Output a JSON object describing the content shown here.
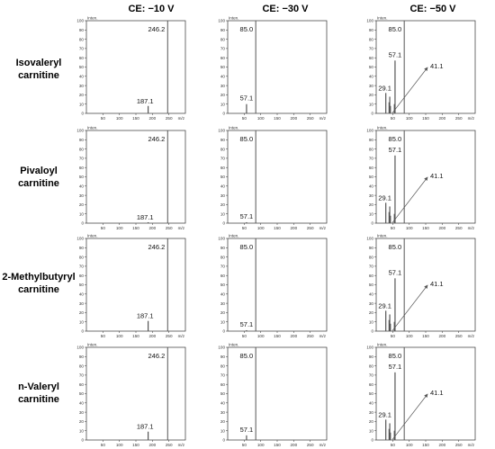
{
  "columns": [
    "CE: −10 V",
    "CE: −30 V",
    "CE: −50 V"
  ],
  "rows": [
    {
      "line1": "Isovaleryl",
      "line2": "carnitine"
    },
    {
      "line1": "Pivaloyl",
      "line2": "carnitine"
    },
    {
      "line1": "2-Methylbutyryl",
      "line2": "carnitine"
    },
    {
      "line1": "n-Valeryl",
      "line2": "carnitine"
    }
  ],
  "axis_text": {
    "intensity_unit": "Inten.",
    "mz_unit": "m/z"
  },
  "chart_data": [
    {
      "type": "bar",
      "compound": "Isovaleryl carnitine",
      "collision_energy": "CE: −10 V",
      "x_ticks": [
        50,
        100,
        150,
        200,
        250
      ],
      "xlim": [
        0,
        300
      ],
      "y_ticks": [
        0,
        10,
        20,
        30,
        40,
        50,
        60,
        70,
        80,
        90,
        100
      ],
      "ylim": [
        0,
        100
      ],
      "peaks": [
        {
          "mz": 187.1,
          "intensity": 8
        },
        {
          "mz": 246.2,
          "intensity": 100
        }
      ],
      "labels": [
        {
          "text": "246.2",
          "mz": 246.2
        },
        {
          "text": "187.1",
          "mz": 187.1
        }
      ]
    },
    {
      "type": "bar",
      "compound": "Isovaleryl carnitine",
      "collision_energy": "CE: −30 V",
      "x_ticks": [
        50,
        100,
        150,
        200,
        250
      ],
      "xlim": [
        0,
        300
      ],
      "y_ticks": [
        0,
        10,
        20,
        30,
        40,
        50,
        60,
        70,
        80,
        90,
        100
      ],
      "ylim": [
        0,
        100
      ],
      "peaks": [
        {
          "mz": 57.1,
          "intensity": 10
        },
        {
          "mz": 85.0,
          "intensity": 100
        }
      ],
      "labels": [
        {
          "text": "85.0",
          "mz": 85.0
        },
        {
          "text": "57.1",
          "mz": 57.1
        }
      ]
    },
    {
      "type": "bar",
      "compound": "Isovaleryl carnitine",
      "collision_energy": "CE: −50 V",
      "x_ticks": [
        50,
        100,
        150,
        200,
        250
      ],
      "xlim": [
        0,
        300
      ],
      "y_ticks": [
        0,
        10,
        20,
        30,
        40,
        50,
        60,
        70,
        80,
        90,
        100
      ],
      "ylim": [
        0,
        100
      ],
      "peaks": [
        {
          "mz": 29.1,
          "intensity": 22
        },
        {
          "mz": 39.1,
          "intensity": 12
        },
        {
          "mz": 41.1,
          "intensity": 18
        },
        {
          "mz": 43.1,
          "intensity": 8
        },
        {
          "mz": 55.1,
          "intensity": 10
        },
        {
          "mz": 57.1,
          "intensity": 57
        },
        {
          "mz": 85.0,
          "intensity": 100
        }
      ],
      "labels": [
        {
          "text": "85.0",
          "mz": 85.0
        },
        {
          "text": "57.1",
          "mz": 57.1
        },
        {
          "text": "29.1",
          "mz": 29.1
        },
        {
          "text": "41.1",
          "mz": 41.1,
          "arrow": true
        }
      ]
    },
    {
      "type": "bar",
      "compound": "Pivaloyl carnitine",
      "collision_energy": "CE: −10 V",
      "x_ticks": [
        50,
        100,
        150,
        200,
        250
      ],
      "xlim": [
        0,
        300
      ],
      "y_ticks": [
        0,
        10,
        20,
        30,
        40,
        50,
        60,
        70,
        80,
        90,
        100
      ],
      "ylim": [
        0,
        100
      ],
      "peaks": [
        {
          "mz": 187.1,
          "intensity": 1
        },
        {
          "mz": 246.2,
          "intensity": 100
        }
      ],
      "labels": [
        {
          "text": "246.2",
          "mz": 246.2
        },
        {
          "text": "187.1",
          "mz": 187.1
        }
      ]
    },
    {
      "type": "bar",
      "compound": "Pivaloyl carnitine",
      "collision_energy": "CE: −30 V",
      "x_ticks": [
        50,
        100,
        150,
        200,
        250
      ],
      "xlim": [
        0,
        300
      ],
      "y_ticks": [
        0,
        10,
        20,
        30,
        40,
        50,
        60,
        70,
        80,
        90,
        100
      ],
      "ylim": [
        0,
        100
      ],
      "peaks": [
        {
          "mz": 57.1,
          "intensity": 1
        },
        {
          "mz": 85.0,
          "intensity": 100
        }
      ],
      "labels": [
        {
          "text": "85.0",
          "mz": 85.0
        },
        {
          "text": "57.1",
          "mz": 57.1
        }
      ]
    },
    {
      "type": "bar",
      "compound": "Pivaloyl carnitine",
      "collision_energy": "CE: −50 V",
      "x_ticks": [
        50,
        100,
        150,
        200,
        250
      ],
      "xlim": [
        0,
        300
      ],
      "y_ticks": [
        0,
        10,
        20,
        30,
        40,
        50,
        60,
        70,
        80,
        90,
        100
      ],
      "ylim": [
        0,
        100
      ],
      "peaks": [
        {
          "mz": 29.1,
          "intensity": 22
        },
        {
          "mz": 39.1,
          "intensity": 12
        },
        {
          "mz": 41.1,
          "intensity": 18
        },
        {
          "mz": 43.1,
          "intensity": 8
        },
        {
          "mz": 55.1,
          "intensity": 10
        },
        {
          "mz": 57.1,
          "intensity": 73
        },
        {
          "mz": 85.0,
          "intensity": 100
        }
      ],
      "labels": [
        {
          "text": "85.0",
          "mz": 85.0
        },
        {
          "text": "57.1",
          "mz": 57.1
        },
        {
          "text": "29.1",
          "mz": 29.1
        },
        {
          "text": "41.1",
          "mz": 41.1,
          "arrow": true
        }
      ]
    },
    {
      "type": "bar",
      "compound": "2-Methylbutyryl carnitine",
      "collision_energy": "CE: −10 V",
      "x_ticks": [
        50,
        100,
        150,
        200,
        250
      ],
      "xlim": [
        0,
        300
      ],
      "y_ticks": [
        0,
        10,
        20,
        30,
        40,
        50,
        60,
        70,
        80,
        90,
        100
      ],
      "ylim": [
        0,
        100
      ],
      "peaks": [
        {
          "mz": 187.1,
          "intensity": 11
        },
        {
          "mz": 246.2,
          "intensity": 100
        }
      ],
      "labels": [
        {
          "text": "246.2",
          "mz": 246.2
        },
        {
          "text": "187.1",
          "mz": 187.1
        }
      ]
    },
    {
      "type": "bar",
      "compound": "2-Methylbutyryl carnitine",
      "collision_energy": "CE: −30 V",
      "x_ticks": [
        50,
        100,
        150,
        200,
        250
      ],
      "xlim": [
        0,
        300
      ],
      "y_ticks": [
        0,
        10,
        20,
        30,
        40,
        50,
        60,
        70,
        80,
        90,
        100
      ],
      "ylim": [
        0,
        100
      ],
      "peaks": [
        {
          "mz": 57.1,
          "intensity": 1
        },
        {
          "mz": 85.0,
          "intensity": 100
        }
      ],
      "labels": [
        {
          "text": "85.0",
          "mz": 85.0
        },
        {
          "text": "57.1",
          "mz": 57.1
        }
      ]
    },
    {
      "type": "bar",
      "compound": "2-Methylbutyryl carnitine",
      "collision_energy": "CE: −50 V",
      "x_ticks": [
        50,
        100,
        150,
        200,
        250
      ],
      "xlim": [
        0,
        300
      ],
      "y_ticks": [
        0,
        10,
        20,
        30,
        40,
        50,
        60,
        70,
        80,
        90,
        100
      ],
      "ylim": [
        0,
        100
      ],
      "peaks": [
        {
          "mz": 29.1,
          "intensity": 22
        },
        {
          "mz": 39.1,
          "intensity": 12
        },
        {
          "mz": 41.1,
          "intensity": 18
        },
        {
          "mz": 43.1,
          "intensity": 8
        },
        {
          "mz": 55.1,
          "intensity": 10
        },
        {
          "mz": 57.1,
          "intensity": 57
        },
        {
          "mz": 85.0,
          "intensity": 100
        }
      ],
      "labels": [
        {
          "text": "85.0",
          "mz": 85.0
        },
        {
          "text": "57.1",
          "mz": 57.1
        },
        {
          "text": "29.1",
          "mz": 29.1
        },
        {
          "text": "41.1",
          "mz": 41.1,
          "arrow": true
        }
      ]
    },
    {
      "type": "bar",
      "compound": "n-Valeryl carnitine",
      "collision_energy": "CE: −10 V",
      "x_ticks": [
        50,
        100,
        150,
        200,
        250
      ],
      "xlim": [
        0,
        300
      ],
      "y_ticks": [
        0,
        10,
        20,
        30,
        40,
        50,
        60,
        70,
        80,
        90,
        100
      ],
      "ylim": [
        0,
        100
      ],
      "peaks": [
        {
          "mz": 187.1,
          "intensity": 9
        },
        {
          "mz": 246.2,
          "intensity": 100
        }
      ],
      "labels": [
        {
          "text": "246.2",
          "mz": 246.2
        },
        {
          "text": "187.1",
          "mz": 187.1
        }
      ]
    },
    {
      "type": "bar",
      "compound": "n-Valeryl carnitine",
      "collision_energy": "CE: −30 V",
      "x_ticks": [
        50,
        100,
        150,
        200,
        250
      ],
      "xlim": [
        0,
        300
      ],
      "y_ticks": [
        0,
        10,
        20,
        30,
        40,
        50,
        60,
        70,
        80,
        90,
        100
      ],
      "ylim": [
        0,
        100
      ],
      "peaks": [
        {
          "mz": 57.1,
          "intensity": 5
        },
        {
          "mz": 85.0,
          "intensity": 100
        }
      ],
      "labels": [
        {
          "text": "85.0",
          "mz": 85.0
        },
        {
          "text": "57.1",
          "mz": 57.1
        }
      ]
    },
    {
      "type": "bar",
      "compound": "n-Valeryl carnitine",
      "collision_energy": "CE: −50 V",
      "x_ticks": [
        50,
        100,
        150,
        200,
        250
      ],
      "xlim": [
        0,
        300
      ],
      "y_ticks": [
        0,
        10,
        20,
        30,
        40,
        50,
        60,
        70,
        80,
        90,
        100
      ],
      "ylim": [
        0,
        100
      ],
      "peaks": [
        {
          "mz": 29.1,
          "intensity": 22
        },
        {
          "mz": 39.1,
          "intensity": 12
        },
        {
          "mz": 41.1,
          "intensity": 18
        },
        {
          "mz": 43.1,
          "intensity": 8
        },
        {
          "mz": 55.1,
          "intensity": 10
        },
        {
          "mz": 57.1,
          "intensity": 73
        },
        {
          "mz": 85.0,
          "intensity": 100
        }
      ],
      "labels": [
        {
          "text": "85.0",
          "mz": 85.0
        },
        {
          "text": "57.1",
          "mz": 57.1
        },
        {
          "text": "29.1",
          "mz": 29.1
        },
        {
          "text": "41.1",
          "mz": 41.1,
          "arrow": true
        }
      ]
    }
  ]
}
